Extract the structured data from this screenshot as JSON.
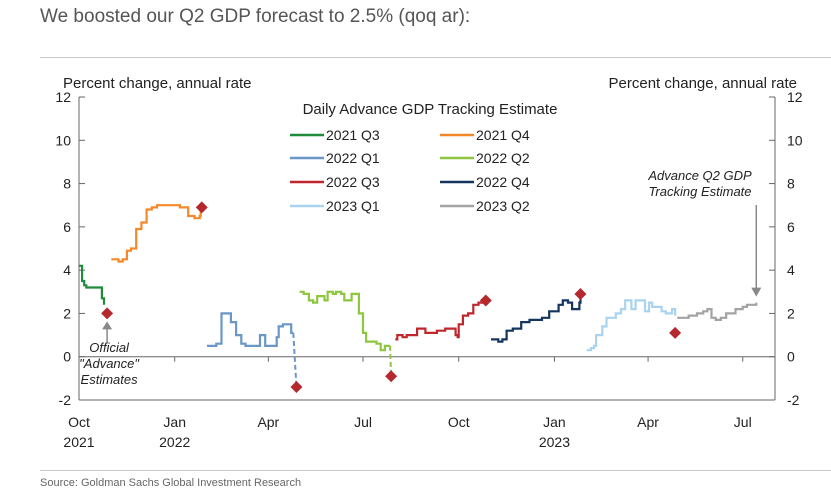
{
  "header": {
    "title": "We boosted our Q2 GDP forecast to 2.5% (qoq ar):"
  },
  "source": "Source: Goldman Sachs Global Investment Research",
  "chart_data": {
    "type": "line",
    "title": "Daily Advance GDP Tracking Estimate",
    "ylabel_left": "Percent change, annual rate",
    "ylabel_right": "Percent change, annual rate",
    "ylim": [
      -2,
      12
    ],
    "yticks": [
      -2,
      0,
      2,
      4,
      6,
      8,
      10,
      12
    ],
    "x_range": [
      "2021-10-01",
      "2023-08-01"
    ],
    "x_ticks": [
      {
        "date": "2021-10-01",
        "label": "Oct",
        "year": "2021"
      },
      {
        "date": "2022-01-01",
        "label": "Jan",
        "year": "2022"
      },
      {
        "date": "2022-04-01",
        "label": "Apr",
        "year": ""
      },
      {
        "date": "2022-07-01",
        "label": "Jul",
        "year": ""
      },
      {
        "date": "2022-10-01",
        "label": "Oct",
        "year": ""
      },
      {
        "date": "2023-01-01",
        "label": "Jan",
        "year": "2023"
      },
      {
        "date": "2023-04-01",
        "label": "Apr",
        "year": ""
      },
      {
        "date": "2023-07-01",
        "label": "Jul",
        "year": ""
      }
    ],
    "grid": false,
    "legend_position": "top-center",
    "series": [
      {
        "name": "2021 Q3",
        "color": "#1e8c3a",
        "points": [
          [
            "2021-10-01",
            4.2
          ],
          [
            "2021-10-03",
            4.2
          ],
          [
            "2021-10-04",
            3.5
          ],
          [
            "2021-10-06",
            3.3
          ],
          [
            "2021-10-08",
            3.2
          ],
          [
            "2021-10-20",
            3.2
          ],
          [
            "2021-10-22",
            3.2
          ],
          [
            "2021-10-23",
            2.7
          ],
          [
            "2021-10-25",
            2.4
          ]
        ]
      },
      {
        "name": "2021 Q4",
        "color": "#f5892a",
        "points": [
          [
            "2021-11-01",
            4.5
          ],
          [
            "2021-11-05",
            4.5
          ],
          [
            "2021-11-08",
            4.4
          ],
          [
            "2021-11-12",
            4.5
          ],
          [
            "2021-11-16",
            4.9
          ],
          [
            "2021-11-20",
            5.0
          ],
          [
            "2021-11-25",
            5.9
          ],
          [
            "2021-11-30",
            6.2
          ],
          [
            "2021-12-05",
            6.8
          ],
          [
            "2021-12-10",
            6.9
          ],
          [
            "2021-12-15",
            7.0
          ],
          [
            "2021-12-22",
            7.0
          ],
          [
            "2021-12-30",
            7.0
          ],
          [
            "2022-01-06",
            6.9
          ],
          [
            "2022-01-10",
            6.9
          ],
          [
            "2022-01-14",
            6.5
          ],
          [
            "2022-01-20",
            6.4
          ],
          [
            "2022-01-25",
            6.5
          ],
          [
            "2022-01-26",
            6.8
          ]
        ]
      },
      {
        "name": "2022 Q1",
        "color": "#6a96c8",
        "points": [
          [
            "2022-02-01",
            0.5
          ],
          [
            "2022-02-06",
            0.5
          ],
          [
            "2022-02-10",
            0.6
          ],
          [
            "2022-02-15",
            2.0
          ],
          [
            "2022-02-20",
            2.0
          ],
          [
            "2022-02-24",
            1.6
          ],
          [
            "2022-03-01",
            1.0
          ],
          [
            "2022-03-03",
            1.0
          ],
          [
            "2022-03-06",
            0.6
          ],
          [
            "2022-03-10",
            0.5
          ],
          [
            "2022-03-18",
            0.5
          ],
          [
            "2022-03-24",
            1.0
          ],
          [
            "2022-03-27",
            1.0
          ],
          [
            "2022-03-29",
            0.5
          ],
          [
            "2022-04-05",
            0.5
          ],
          [
            "2022-04-09",
            0.9
          ],
          [
            "2022-04-11",
            1.4
          ],
          [
            "2022-04-15",
            1.5
          ],
          [
            "2022-04-20",
            1.5
          ],
          [
            "2022-04-23",
            1.1
          ],
          [
            "2022-04-25",
            1.1
          ]
        ]
      },
      {
        "name": "2022 Q2",
        "color": "#8dc63f",
        "points": [
          [
            "2022-05-01",
            3.0
          ],
          [
            "2022-05-05",
            2.9
          ],
          [
            "2022-05-08",
            2.9
          ],
          [
            "2022-05-10",
            2.6
          ],
          [
            "2022-05-14",
            2.5
          ],
          [
            "2022-05-18",
            2.8
          ],
          [
            "2022-05-22",
            2.8
          ],
          [
            "2022-05-25",
            2.6
          ],
          [
            "2022-05-28",
            3.0
          ],
          [
            "2022-06-02",
            2.9
          ],
          [
            "2022-06-05",
            3.0
          ],
          [
            "2022-06-10",
            2.9
          ],
          [
            "2022-06-13",
            2.6
          ],
          [
            "2022-06-17",
            2.6
          ],
          [
            "2022-06-20",
            2.9
          ],
          [
            "2022-06-23",
            2.9
          ],
          [
            "2022-06-27",
            2.0
          ],
          [
            "2022-07-01",
            1.1
          ],
          [
            "2022-07-04",
            0.7
          ],
          [
            "2022-07-10",
            0.7
          ],
          [
            "2022-07-14",
            0.6
          ],
          [
            "2022-07-18",
            0.3
          ],
          [
            "2022-07-22",
            0.5
          ],
          [
            "2022-07-27",
            0.5
          ]
        ]
      },
      {
        "name": "2022 Q3",
        "color": "#c0272d",
        "points": [
          [
            "2022-08-01",
            0.8
          ],
          [
            "2022-08-03",
            1.0
          ],
          [
            "2022-08-08",
            0.9
          ],
          [
            "2022-08-12",
            1.0
          ],
          [
            "2022-08-18",
            1.0
          ],
          [
            "2022-08-22",
            1.3
          ],
          [
            "2022-08-26",
            1.3
          ],
          [
            "2022-08-30",
            1.1
          ],
          [
            "2022-09-05",
            1.1
          ],
          [
            "2022-09-10",
            1.2
          ],
          [
            "2022-09-15",
            1.2
          ],
          [
            "2022-09-18",
            1.3
          ],
          [
            "2022-09-26",
            1.3
          ],
          [
            "2022-09-28",
            1.0
          ],
          [
            "2022-09-30",
            0.9
          ],
          [
            "2022-10-01",
            1.5
          ],
          [
            "2022-10-05",
            1.9
          ],
          [
            "2022-10-10",
            2.0
          ],
          [
            "2022-10-15",
            2.4
          ],
          [
            "2022-10-20",
            2.5
          ],
          [
            "2022-10-26",
            2.6
          ]
        ]
      },
      {
        "name": "2022 Q4",
        "color": "#14365e",
        "points": [
          [
            "2022-11-01",
            0.8
          ],
          [
            "2022-11-05",
            0.8
          ],
          [
            "2022-11-08",
            0.7
          ],
          [
            "2022-11-12",
            0.8
          ],
          [
            "2022-11-16",
            1.2
          ],
          [
            "2022-11-22",
            1.3
          ],
          [
            "2022-11-26",
            1.3
          ],
          [
            "2022-11-30",
            1.6
          ],
          [
            "2022-12-05",
            1.6
          ],
          [
            "2022-12-08",
            1.7
          ],
          [
            "2022-12-15",
            1.7
          ],
          [
            "2022-12-20",
            1.8
          ],
          [
            "2022-12-27",
            2.1
          ],
          [
            "2023-01-03",
            2.1
          ],
          [
            "2023-01-05",
            2.4
          ],
          [
            "2023-01-09",
            2.6
          ],
          [
            "2023-01-14",
            2.5
          ],
          [
            "2023-01-18",
            2.2
          ],
          [
            "2023-01-22",
            2.2
          ],
          [
            "2023-01-25",
            2.5
          ],
          [
            "2023-01-26",
            2.7
          ]
        ]
      },
      {
        "name": "2023 Q1",
        "color": "#a9d3ef",
        "points": [
          [
            "2023-02-01",
            0.3
          ],
          [
            "2023-02-05",
            0.4
          ],
          [
            "2023-02-08",
            0.5
          ],
          [
            "2023-02-10",
            1.0
          ],
          [
            "2023-02-13",
            1.0
          ],
          [
            "2023-02-16",
            1.4
          ],
          [
            "2023-02-20",
            1.8
          ],
          [
            "2023-02-25",
            1.8
          ],
          [
            "2023-03-01",
            2.0
          ],
          [
            "2023-03-06",
            2.2
          ],
          [
            "2023-03-10",
            2.6
          ],
          [
            "2023-03-16",
            2.2
          ],
          [
            "2023-03-20",
            2.6
          ],
          [
            "2023-03-25",
            2.6
          ],
          [
            "2023-03-29",
            2.1
          ],
          [
            "2023-04-02",
            2.5
          ],
          [
            "2023-04-05",
            2.3
          ],
          [
            "2023-04-10",
            2.3
          ],
          [
            "2023-04-14",
            2.1
          ],
          [
            "2023-04-18",
            2.0
          ],
          [
            "2023-04-24",
            2.2
          ],
          [
            "2023-04-27",
            1.9
          ]
        ]
      },
      {
        "name": "2023 Q2",
        "color": "#a3a3a3",
        "points": [
          [
            "2023-04-29",
            1.8
          ],
          [
            "2023-05-05",
            1.8
          ],
          [
            "2023-05-10",
            1.9
          ],
          [
            "2023-05-14",
            1.9
          ],
          [
            "2023-05-18",
            2.0
          ],
          [
            "2023-05-24",
            2.1
          ],
          [
            "2023-05-28",
            2.2
          ],
          [
            "2023-06-01",
            1.8
          ],
          [
            "2023-06-05",
            1.7
          ],
          [
            "2023-06-10",
            1.8
          ],
          [
            "2023-06-15",
            2.0
          ],
          [
            "2023-06-18",
            2.0
          ],
          [
            "2023-06-24",
            2.2
          ],
          [
            "2023-06-28",
            2.2
          ],
          [
            "2023-07-01",
            2.3
          ],
          [
            "2023-07-05",
            2.4
          ],
          [
            "2023-07-12",
            2.4
          ],
          [
            "2023-07-14",
            2.5
          ]
        ]
      }
    ],
    "dashed_links": [
      {
        "series": "2022 Q1",
        "from": [
          "2022-04-25",
          1.1
        ],
        "to": [
          "2022-04-28",
          -1.4
        ]
      },
      {
        "series": "2022 Q2",
        "from": [
          "2022-07-27",
          0.5
        ],
        "to": [
          "2022-07-28",
          -0.9
        ]
      }
    ],
    "official_estimates": {
      "color": "#b5292e",
      "points": [
        [
          "2021-10-28",
          2.0
        ],
        [
          "2022-01-27",
          6.9
        ],
        [
          "2022-04-28",
          -1.4
        ],
        [
          "2022-07-28",
          -0.9
        ],
        [
          "2022-10-27",
          2.6
        ],
        [
          "2023-01-26",
          2.9
        ],
        [
          "2023-04-27",
          1.1
        ]
      ]
    },
    "annotations": [
      {
        "id": "official",
        "lines": [
          "Official",
          "\"Advance\"",
          "Estimates"
        ],
        "points_to": [
          "2021-10-28",
          2.0
        ]
      },
      {
        "id": "advance-q2",
        "lines": [
          "Advance Q2 GDP",
          "Tracking Estimate"
        ],
        "points_to": [
          "2023-07-14",
          2.5
        ]
      }
    ]
  }
}
